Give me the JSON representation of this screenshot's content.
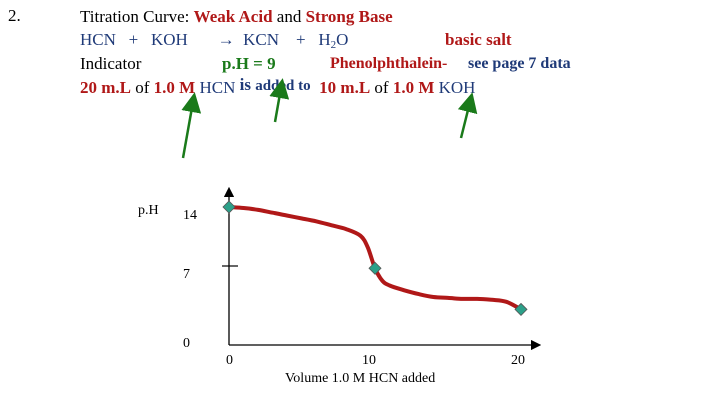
{
  "slide": {
    "number": "2.",
    "title_prefix": "Titration Curve:",
    "weak_acid": "Weak Acid",
    "and_word": "and",
    "strong_base": "Strong Base",
    "eq_hcn": "HCN",
    "eq_plus1": "+",
    "eq_koh": "KOH",
    "eq_arrow": "→",
    "eq_kcn": "KCN",
    "eq_plus2": "+",
    "eq_h": "H",
    "eq_sub2": "2",
    "eq_o": "O",
    "basic_salt": "basic salt",
    "indicator_label": "Indicator",
    "ph_eq": "p.H = 9",
    "phenol": "Phenolphthalein-",
    "see_page": "see page 7 data",
    "vol1": "20 m.L",
    "of1": "of",
    "conc1": "1.0 M",
    "hcn2": "HCN",
    "is_word": "is",
    "added_to": "added to",
    "vol2": "10 m.L",
    "of2": "of",
    "conc2": "1.0 M",
    "koh2": "KOH"
  },
  "colors": {
    "curve": "#b01818",
    "marker": "#2ca089",
    "arrow": "#1a7a1a",
    "accent_red": "#b01818",
    "accent_blue": "#1f3a78",
    "accent_green": "#1a7a1a"
  },
  "chart_data": {
    "type": "line",
    "ylabel": "p.H",
    "xlabel": "Volume 1.0 M HCN added",
    "xlim": [
      0,
      20
    ],
    "ylim": [
      0,
      14
    ],
    "x_ticks": [
      0,
      10,
      20
    ],
    "y_ticks": [
      0,
      7,
      14
    ],
    "grid": false,
    "series": [
      {
        "x": [
          0,
          1,
          2,
          3,
          4,
          5,
          6,
          7,
          8,
          9,
          9.5,
          10,
          10.5,
          11,
          12,
          13,
          14,
          15,
          16,
          17,
          18,
          19,
          20
        ],
        "y": [
          14,
          13.9,
          13.7,
          13.4,
          13.1,
          12.8,
          12.5,
          12.1,
          11.7,
          11.0,
          9.8,
          7.6,
          6.3,
          5.8,
          5.3,
          4.9,
          4.6,
          4.5,
          4.4,
          4.4,
          4.3,
          4.1,
          3.3
        ]
      }
    ],
    "markers": [
      {
        "x": 0,
        "y": 14
      },
      {
        "x": 10,
        "y": 7.6
      },
      {
        "x": 20,
        "y": 3.3
      }
    ]
  }
}
